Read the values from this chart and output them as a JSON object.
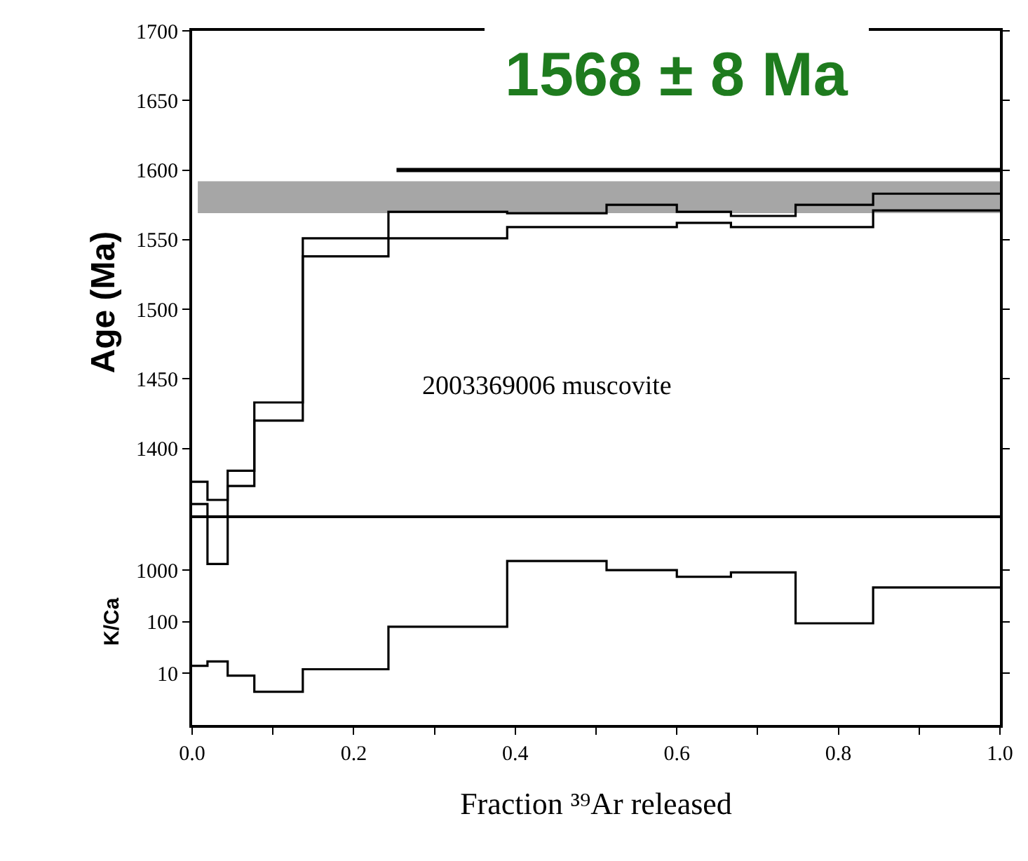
{
  "chart_data": [
    {
      "type": "step",
      "title": "1568 ± 8 Ma",
      "ylabel": "Age (Ma)",
      "annotations": [
        "2003369006 muscovite"
      ],
      "xlim": [
        0,
        1
      ],
      "xticks": [
        0,
        0.2,
        0.4,
        0.6,
        0.8,
        1.0
      ],
      "ylim": [
        1310,
        1700
      ],
      "yticks": [
        1400,
        1450,
        1500,
        1550,
        1600,
        1650,
        1700
      ],
      "tick_labels": "y",
      "bands": [
        {
          "axis": "y",
          "from": 1569,
          "to": 1592,
          "color": "#a6a6a6"
        }
      ],
      "series": [
        {
          "type": "step",
          "color": "#000000",
          "x": [
            0,
            0.019,
            0.044,
            0.077,
            0.137,
            0.243,
            0.39,
            0.513,
            0.6,
            0.667,
            0.747,
            0.843,
            1.0
          ],
          "values": [
            1376,
            1363,
            1384,
            1433,
            1551,
            1570,
            1569,
            1575,
            1570,
            1567,
            1575,
            1583,
            1583
          ]
        },
        {
          "type": "step",
          "color": "#000000",
          "x": [
            0,
            0.019,
            0.044,
            0.077,
            0.137,
            0.243,
            0.39,
            0.513,
            0.6,
            0.667,
            0.747,
            0.843,
            1.0
          ],
          "values": [
            1360,
            1317,
            1373,
            1420,
            1538,
            1551,
            1559,
            1559,
            1562,
            1559,
            1559,
            1571,
            1571
          ]
        },
        {
          "type": "line",
          "color": "#000000",
          "x": [
            0.253,
            1.0
          ],
          "values": [
            1600,
            1600
          ]
        }
      ]
    },
    {
      "type": "step",
      "xlabel": "Fraction ³⁹Ar released",
      "ylabel": "K/Ca",
      "log": "y",
      "xlim": [
        0,
        1
      ],
      "xticks": [
        {
          "value": 0,
          "label": "0.0"
        },
        {
          "value": 0.1,
          "label": null
        },
        0.2,
        {
          "value": 0.3,
          "label": null
        },
        0.4,
        {
          "value": 0.5,
          "label": null
        },
        0.6,
        {
          "value": 0.7,
          "label": null
        },
        0.8,
        {
          "value": 0.9,
          "label": null
        },
        {
          "value": 1,
          "label": "1.0"
        }
      ],
      "ylim": [
        1,
        10000
      ],
      "yticks": [
        10,
        100,
        1000
      ],
      "series": [
        {
          "type": "step",
          "color": "#000000",
          "x": [
            0,
            0.019,
            0.044,
            0.077,
            0.137,
            0.243,
            0.39,
            0.513,
            0.6,
            0.667,
            0.747,
            0.843,
            1.0
          ],
          "values": [
            14,
            17,
            9,
            4.4,
            12,
            80,
            1500,
            1000,
            740,
            900,
            93,
            460,
            460
          ]
        }
      ]
    }
  ]
}
